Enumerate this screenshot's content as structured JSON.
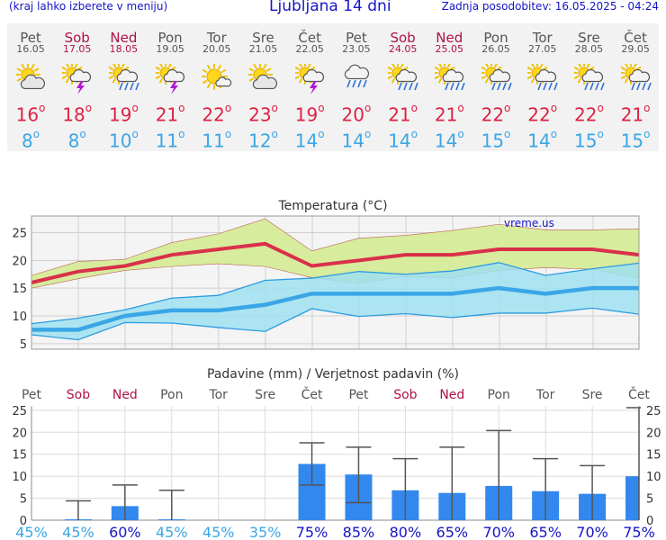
{
  "header": {
    "menu_hint": "(kraj lahko izberete v meniju)",
    "title": "Ljubljana 14 dni",
    "updated": "Zadnja posodobitev: 16.05.2025 - 04:24"
  },
  "days": [
    {
      "name": "Pet",
      "date": "16.05",
      "weekend": false,
      "icon": "partly-cloudy-icon",
      "max": "16",
      "min": "8"
    },
    {
      "name": "Sob",
      "date": "17.05",
      "weekend": true,
      "icon": "sun-thunderstorm-icon",
      "max": "18",
      "min": "8"
    },
    {
      "name": "Ned",
      "date": "18.05",
      "weekend": true,
      "icon": "sun-rain-icon",
      "max": "19",
      "min": "10"
    },
    {
      "name": "Pon",
      "date": "19.05",
      "weekend": false,
      "icon": "sun-thunderstorm-icon",
      "max": "21",
      "min": "11"
    },
    {
      "name": "Tor",
      "date": "20.05",
      "weekend": false,
      "icon": "mostly-sunny-icon",
      "max": "22",
      "min": "11"
    },
    {
      "name": "Sre",
      "date": "21.05",
      "weekend": false,
      "icon": "partly-cloudy-icon",
      "max": "23",
      "min": "12"
    },
    {
      "name": "Čet",
      "date": "22.05",
      "weekend": false,
      "icon": "sun-thunderstorm-icon",
      "max": "19",
      "min": "14"
    },
    {
      "name": "Pet",
      "date": "23.05",
      "weekend": false,
      "icon": "cloud-rain-icon",
      "max": "20",
      "min": "14"
    },
    {
      "name": "Sob",
      "date": "24.05",
      "weekend": true,
      "icon": "sun-rain-icon",
      "max": "21",
      "min": "14"
    },
    {
      "name": "Ned",
      "date": "25.05",
      "weekend": true,
      "icon": "sun-rain-icon",
      "max": "21",
      "min": "14"
    },
    {
      "name": "Pon",
      "date": "26.05",
      "weekend": false,
      "icon": "sun-rain-icon",
      "max": "22",
      "min": "15"
    },
    {
      "name": "Tor",
      "date": "27.05",
      "weekend": false,
      "icon": "sun-rain-icon",
      "max": "22",
      "min": "14"
    },
    {
      "name": "Sre",
      "date": "28.05",
      "weekend": false,
      "icon": "sun-rain-icon",
      "max": "22",
      "min": "15"
    },
    {
      "name": "Čet",
      "date": "29.05",
      "weekend": false,
      "icon": "sun-rain-icon",
      "max": "21",
      "min": "15"
    }
  ],
  "colors": {
    "title_blue": "#1515c8",
    "weekend": "#b0104a",
    "max_red": "#dd2244",
    "min_blue": "#3aa6e6",
    "tmax_band": "#d7ec9c",
    "tmin_band": "#9fe0f0",
    "overlap": "#8fd79a",
    "precip_bar": "#3388ee",
    "prob_dark": "#1515c8",
    "prob_light": "#3aa6e6"
  },
  "chart_data": [
    {
      "type": "line",
      "title": "Temperatura (°C)",
      "watermark": "vreme.us",
      "x": [
        "16.05",
        "17.05",
        "18.05",
        "19.05",
        "20.05",
        "21.05",
        "22.05",
        "23.05",
        "24.05",
        "25.05",
        "26.05",
        "27.05",
        "28.05",
        "29.05"
      ],
      "ylim": [
        4,
        28
      ],
      "yticks": [
        5,
        10,
        15,
        20,
        25
      ],
      "grid": true,
      "series": [
        {
          "values": [
            16,
            18,
            19,
            21,
            22,
            23,
            19,
            20,
            21,
            21,
            22,
            22,
            22,
            21
          ]
        },
        {
          "values": [
            17.3,
            19.8,
            20.2,
            23.2,
            24.8,
            27.5,
            21.7,
            24.0,
            24.5,
            25.4,
            26.5,
            25.5,
            25.5,
            25.7
          ]
        },
        {
          "values": [
            15.0,
            16.7,
            18.2,
            18.9,
            19.4,
            18.9,
            16.9,
            15.9,
            17.1,
            16.9,
            18.2,
            18.7,
            18.4,
            16.8
          ]
        },
        {
          "values": [
            7.5,
            7.5,
            10,
            11,
            11,
            12,
            14,
            14,
            14,
            14,
            15,
            14,
            15,
            15
          ]
        },
        {
          "values": [
            8.6,
            9.6,
            11.1,
            13.2,
            13.7,
            16.4,
            16.8,
            18.0,
            17.5,
            18.1,
            19.6,
            17.3,
            18.5,
            19.5
          ]
        },
        {
          "values": [
            6.6,
            5.7,
            8.8,
            8.7,
            7.9,
            7.2,
            11.3,
            9.9,
            10.4,
            9.7,
            10.5,
            10.5,
            11.4,
            10.3
          ]
        }
      ]
    },
    {
      "type": "bar",
      "title": "Padavine (mm) / Verjetnost padavin (%)",
      "categories": [
        "Pet",
        "Sob",
        "Ned",
        "Pon",
        "Tor",
        "Sre",
        "Čet",
        "Pet",
        "Sob",
        "Ned",
        "Pon",
        "Tor",
        "Sre",
        "Čet"
      ],
      "weekend": [
        false,
        true,
        true,
        false,
        false,
        false,
        false,
        false,
        true,
        true,
        false,
        false,
        false,
        false
      ],
      "ylim": [
        0,
        26
      ],
      "yticks": [
        0,
        5,
        10,
        15,
        20,
        25
      ],
      "grid": true,
      "precip": [
        0,
        0.2,
        3.2,
        0.2,
        0,
        0,
        12.8,
        10.4,
        6.8,
        6.2,
        7.8,
        6.6,
        6.0,
        10.0
      ],
      "range_low": [
        0,
        0,
        0,
        0,
        0,
        0,
        8.0,
        4.0,
        0,
        0,
        0,
        0,
        0,
        0
      ],
      "range_high": [
        0,
        4.4,
        8.0,
        6.8,
        0,
        0,
        17.6,
        16.6,
        14.0,
        16.6,
        20.4,
        14.0,
        12.4,
        25.6
      ],
      "probability": [
        "45%",
        "45%",
        "60%",
        "45%",
        "45%",
        "35%",
        "75%",
        "85%",
        "80%",
        "65%",
        "70%",
        "65%",
        "70%",
        "75%"
      ]
    }
  ]
}
